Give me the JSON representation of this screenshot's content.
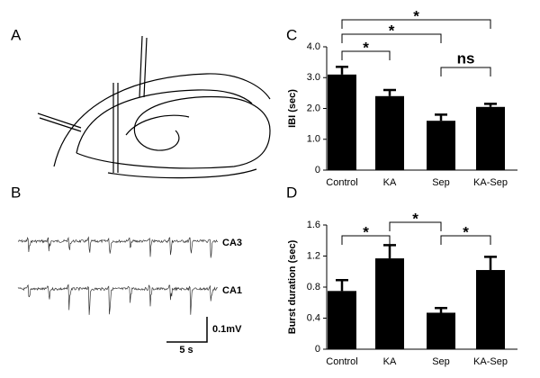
{
  "panel_labels": [
    "A",
    "B",
    "C",
    "D"
  ],
  "traces": {
    "labels": [
      "CA3",
      "CA1"
    ],
    "time_scale": "5 s",
    "voltage_scale": "0.1mV"
  },
  "chart_data": [
    {
      "type": "bar",
      "ylabel": "IBI (sec)",
      "categories": [
        "Control",
        "KA",
        "Sep",
        "KA-Sep"
      ],
      "values": [
        3.1,
        2.4,
        1.6,
        2.05
      ],
      "errors": [
        0.25,
        0.2,
        0.2,
        0.1
      ],
      "color": "#000000",
      "ylim": [
        0,
        4
      ],
      "yticks": [
        0,
        {
          "value": 1,
          "label": "1.0"
        },
        {
          "value": 2,
          "label": "2.0"
        },
        {
          "value": 3,
          "label": "3.0"
        },
        {
          "value": 4,
          "label": "4.0"
        }
      ],
      "annotations": [
        {
          "pair": [
            0,
            1
          ],
          "text": "*"
        },
        {
          "pair": [
            0,
            2
          ],
          "text": "*"
        },
        {
          "pair": [
            0,
            3
          ],
          "text": "*"
        },
        {
          "pair": [
            2,
            3
          ],
          "text": "ns"
        }
      ]
    },
    {
      "type": "bar",
      "ylabel": "Burst duration (sec)",
      "categories": [
        "Control",
        "KA",
        "Sep",
        "KA-Sep"
      ],
      "values": [
        0.75,
        1.17,
        0.47,
        1.02
      ],
      "errors": [
        0.14,
        0.17,
        0.06,
        0.17
      ],
      "color": "#000000",
      "ylim": [
        0,
        1.6
      ],
      "yticks": [
        0,
        0.4,
        0.8,
        1.2,
        1.6
      ],
      "annotations": [
        {
          "pair": [
            0,
            1
          ],
          "text": "*"
        },
        {
          "pair": [
            1,
            2
          ],
          "text": "*"
        },
        {
          "pair": [
            2,
            3
          ],
          "text": "*"
        }
      ]
    }
  ]
}
